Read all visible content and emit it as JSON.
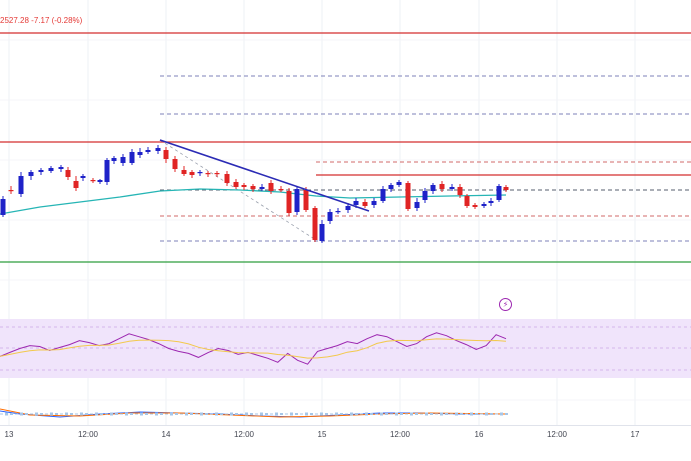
{
  "ohlc": {
    "close": "2527.28",
    "change": "-7.17",
    "change_pct": "(-0.28%)"
  },
  "colors": {
    "bull": "#1e22c8",
    "bear": "#e02424",
    "resistance": "#d32f2f",
    "support": "#2e9e3e",
    "ema": "#26b5b5",
    "trendline": "#2b2bb5",
    "rsi": "#9c27b0",
    "rsi_signal": "#f2c94c",
    "rsi_band": "#f0e4fb"
  },
  "time_axis": {
    "labels": [
      "13",
      "12:00",
      "14",
      "12:00",
      "15",
      "12:00",
      "16",
      "12:00",
      "17"
    ]
  },
  "alert_icon": "lightning-icon",
  "indicators": {
    "rsi_levels": [
      30,
      50,
      70
    ],
    "rsi_values": [
      42,
      46,
      50,
      53,
      52,
      48,
      51,
      54,
      58,
      56,
      53,
      55,
      60,
      65,
      62,
      59,
      55,
      50,
      47,
      45,
      41,
      46,
      50,
      48,
      44,
      46,
      43,
      40,
      36,
      45,
      38,
      34,
      47,
      50,
      53,
      57,
      55,
      60,
      64,
      62,
      57,
      52,
      55,
      62,
      66,
      63,
      58,
      54,
      49,
      53,
      64,
      60
    ]
  }
}
